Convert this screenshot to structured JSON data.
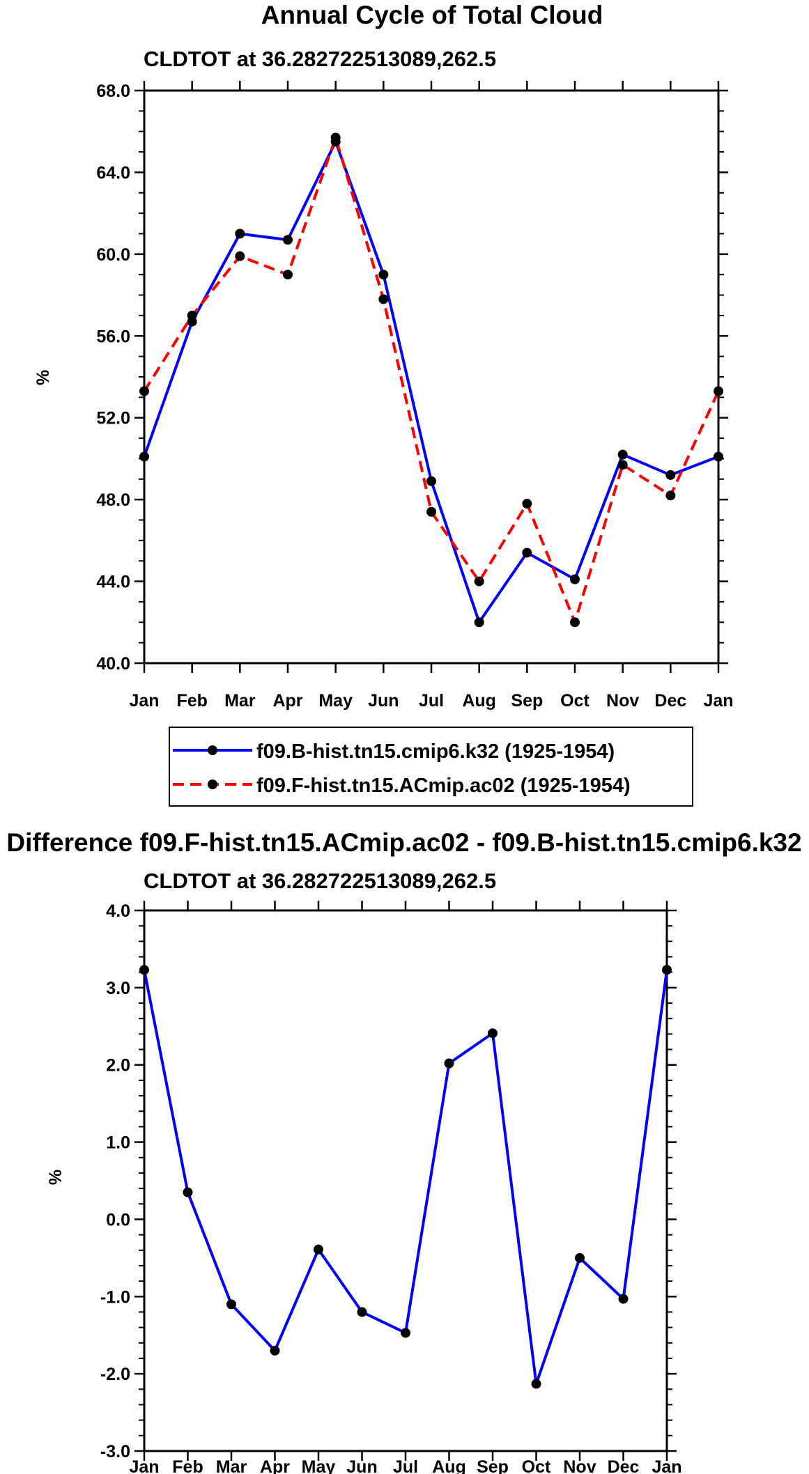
{
  "colors": {
    "series_a": "#0000ff",
    "series_b": "#ff0000",
    "marker": "#000000",
    "axis": "#000000"
  },
  "chart_data": [
    {
      "type": "line",
      "title": "Annual Cycle of Total Cloud",
      "subtitle": "CLDTOT at 36.282722513089,262.5",
      "xlabel": "",
      "ylabel": "%",
      "categories": [
        "Jan",
        "Feb",
        "Mar",
        "Apr",
        "May",
        "Jun",
        "Jul",
        "Aug",
        "Sep",
        "Oct",
        "Nov",
        "Dec",
        "Jan"
      ],
      "ylim": [
        40.0,
        68.0
      ],
      "yticks": [
        "40.0",
        "44.0",
        "48.0",
        "52.0",
        "56.0",
        "60.0",
        "64.0",
        "68.0"
      ],
      "ytick_values": [
        40,
        44,
        48,
        52,
        56,
        60,
        64,
        68
      ],
      "yminor_step": 1,
      "series": [
        {
          "name": "f09.B-hist.tn15.cmip6.k32 (1925-1954)",
          "style": "solid",
          "color": "#0000ff",
          "values": [
            50.1,
            56.7,
            61.0,
            60.7,
            65.5,
            59.0,
            48.9,
            42.0,
            45.4,
            44.1,
            50.2,
            49.2,
            50.1
          ]
        },
        {
          "name": "f09.F-hist.tn15.ACmip.ac02 (1925-1954)",
          "style": "dashed",
          "color": "#ff0000",
          "values": [
            53.3,
            57.0,
            59.9,
            59.0,
            65.7,
            57.8,
            47.4,
            44.0,
            47.8,
            42.0,
            49.7,
            48.2,
            53.3
          ]
        }
      ],
      "legend": [
        {
          "label": "f09.B-hist.tn15.cmip6.k32 (1925-1954)"
        },
        {
          "label": "f09.F-hist.tn15.ACmip.ac02 (1925-1954)"
        }
      ]
    },
    {
      "type": "line",
      "title": "Difference f09.F-hist.tn15.ACmip.ac02 - f09.B-hist.tn15.cmip6.k32",
      "subtitle": "CLDTOT at 36.282722513089,262.5",
      "xlabel": "",
      "ylabel": "%",
      "categories": [
        "Jan",
        "Feb",
        "Mar",
        "Apr",
        "May",
        "Jun",
        "Jul",
        "Aug",
        "Sep",
        "Oct",
        "Nov",
        "Dec",
        "Jan"
      ],
      "ylim": [
        -3.0,
        4.0
      ],
      "yticks": [
        "-3.0",
        "-2.0",
        "-1.0",
        "0.0",
        "1.0",
        "2.0",
        "3.0",
        "4.0"
      ],
      "ytick_values": [
        -3,
        -2,
        -1,
        0,
        1,
        2,
        3,
        4
      ],
      "yminor_step": 0.2,
      "series": [
        {
          "name": "difference",
          "style": "solid",
          "color": "#0000ff",
          "values": [
            3.23,
            0.35,
            -1.1,
            -1.7,
            -0.39,
            -1.2,
            -1.47,
            2.02,
            2.41,
            -2.13,
            -0.5,
            -1.03,
            3.23
          ]
        }
      ]
    }
  ]
}
